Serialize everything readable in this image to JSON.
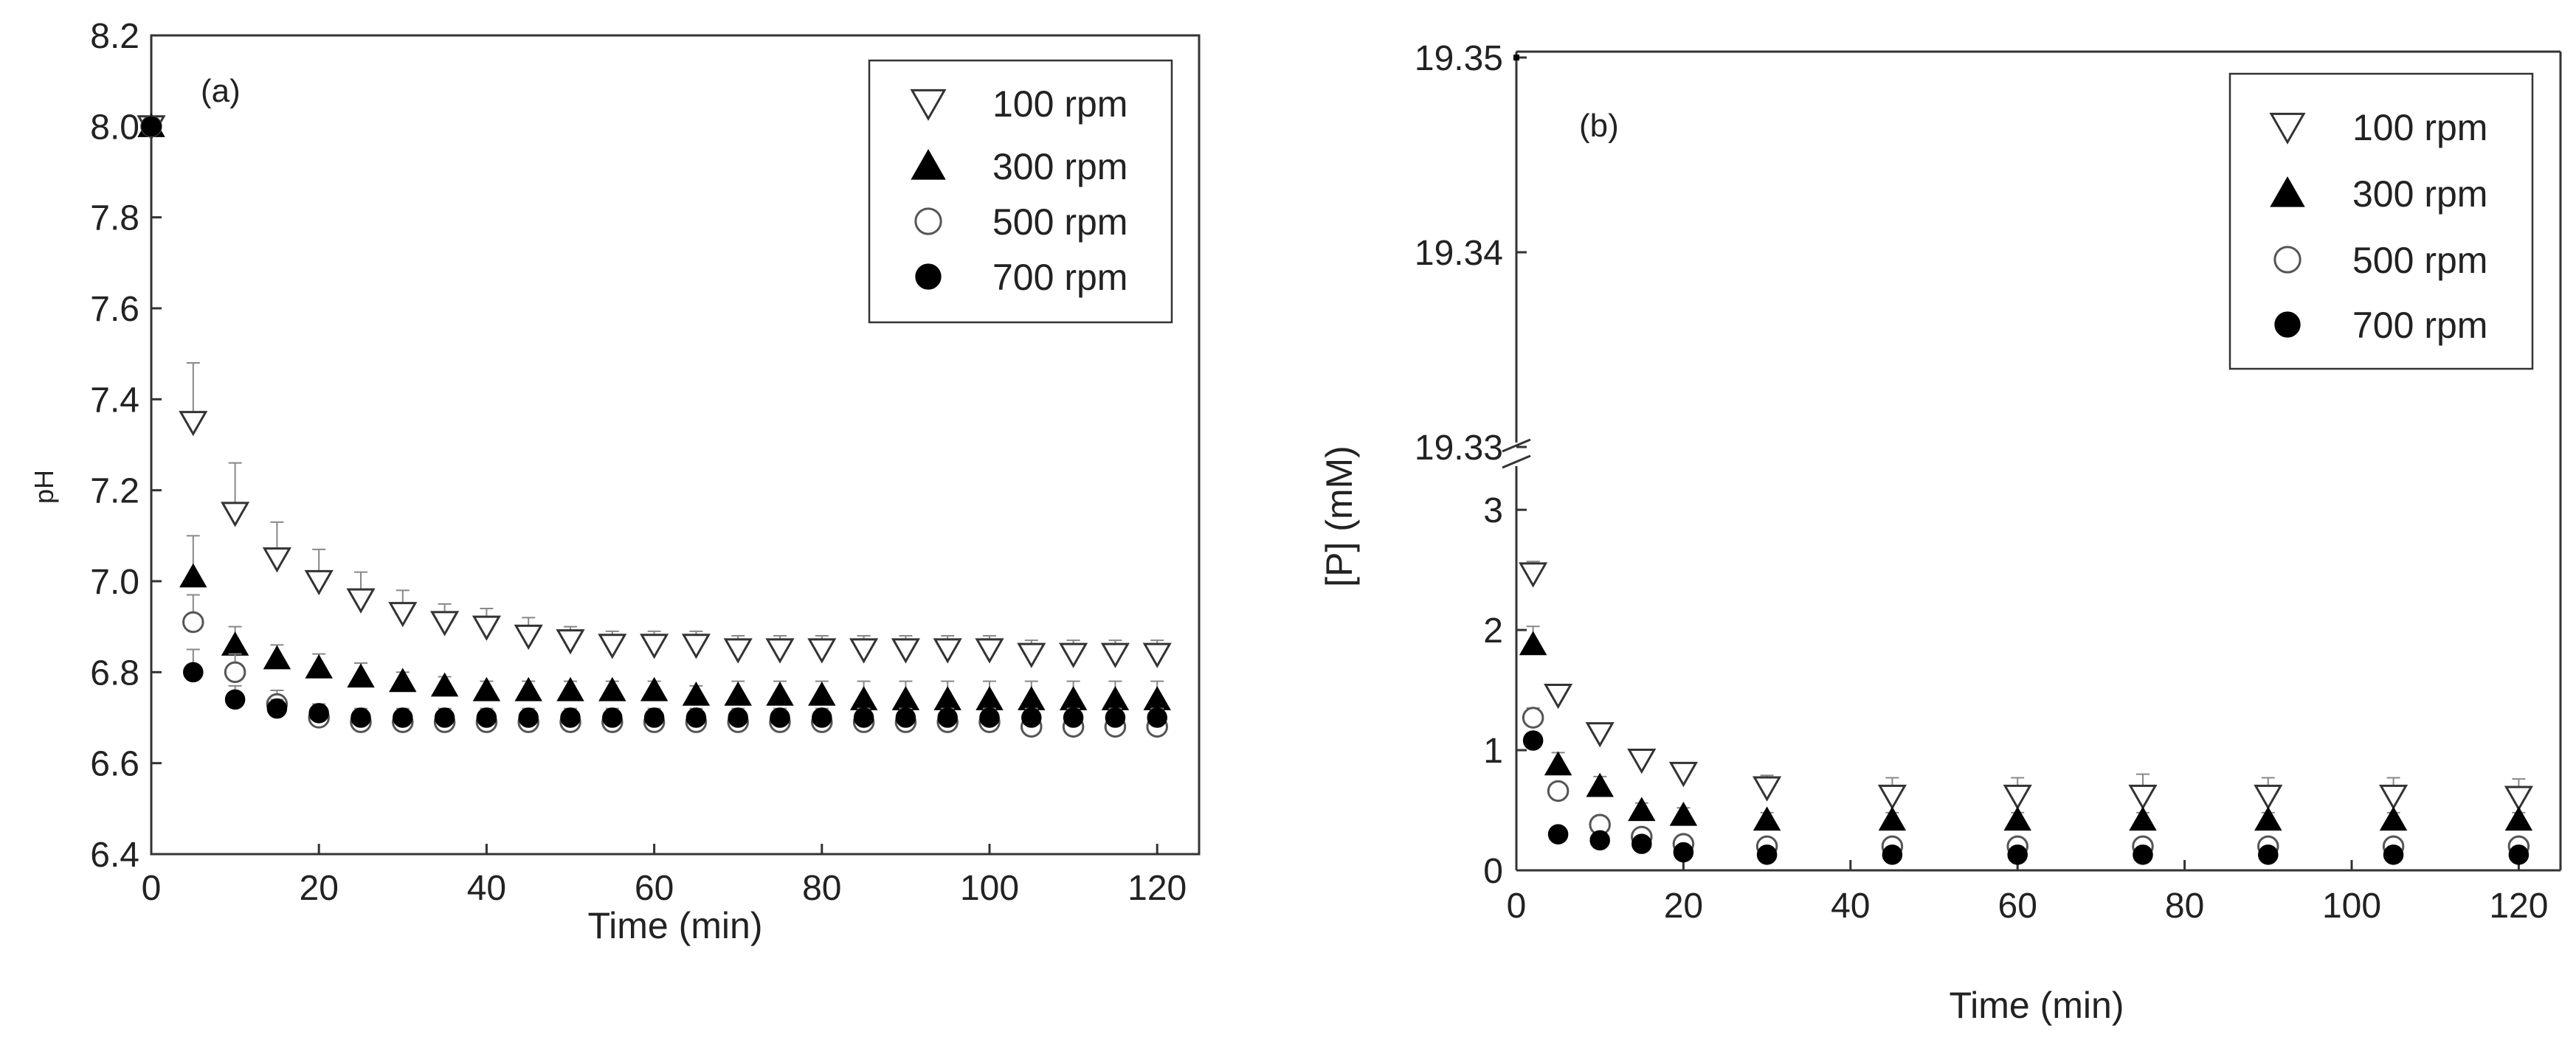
{
  "chart_data": [
    {
      "type": "scatter",
      "panel_label": "(a)",
      "xlabel": "Time (min)",
      "ylabel": "pH",
      "xlim": [
        0,
        125
      ],
      "ylim": [
        6.4,
        8.2
      ],
      "x_ticks": [
        0,
        20,
        40,
        60,
        80,
        100,
        120
      ],
      "y_ticks": [
        6.4,
        6.6,
        6.8,
        7.0,
        7.2,
        7.4,
        7.6,
        7.8,
        8.0,
        8.2
      ],
      "x_tick_labels": [
        "0",
        "20",
        "40",
        "60",
        "80",
        "100",
        "120"
      ],
      "y_tick_labels": [
        "6.4",
        "6.6",
        "6.8",
        "7.0",
        "7.2",
        "7.4",
        "7.6",
        "7.8",
        "8.0",
        "8.2"
      ],
      "legend_position": "top-right",
      "x": [
        0,
        5,
        10,
        15,
        20,
        25,
        30,
        35,
        40,
        45,
        50,
        55,
        60,
        65,
        70,
        75,
        80,
        85,
        90,
        95,
        100,
        105,
        110,
        115,
        120
      ],
      "series": [
        {
          "name": "100 rpm",
          "marker": "triangle-down-open",
          "values": [
            8.0,
            7.35,
            7.15,
            7.05,
            7.0,
            6.96,
            6.93,
            6.91,
            6.9,
            6.88,
            6.87,
            6.86,
            6.86,
            6.86,
            6.85,
            6.85,
            6.85,
            6.85,
            6.85,
            6.85,
            6.85,
            6.84,
            6.84,
            6.84,
            6.84
          ],
          "errors": [
            0,
            0.13,
            0.11,
            0.08,
            0.07,
            0.06,
            0.05,
            0.04,
            0.04,
            0.04,
            0.03,
            0.03,
            0.03,
            0.03,
            0.03,
            0.03,
            0.03,
            0.03,
            0.03,
            0.03,
            0.03,
            0.03,
            0.03,
            0.03,
            0.03
          ]
        },
        {
          "name": "300 rpm",
          "marker": "triangle-up-filled",
          "values": [
            8.0,
            7.01,
            6.86,
            6.83,
            6.81,
            6.79,
            6.78,
            6.77,
            6.76,
            6.76,
            6.76,
            6.76,
            6.76,
            6.75,
            6.75,
            6.75,
            6.75,
            6.74,
            6.74,
            6.74,
            6.74,
            6.74,
            6.74,
            6.74,
            6.74
          ],
          "errors": [
            0,
            0.09,
            0.04,
            0.03,
            0.03,
            0.03,
            0.02,
            0.02,
            0.02,
            0.02,
            0.02,
            0.02,
            0.02,
            0.02,
            0.03,
            0.03,
            0.03,
            0.04,
            0.04,
            0.04,
            0.04,
            0.04,
            0.04,
            0.04,
            0.04
          ]
        },
        {
          "name": "500 rpm",
          "marker": "circle-open",
          "values": [
            8.0,
            6.91,
            6.8,
            6.73,
            6.7,
            6.69,
            6.69,
            6.69,
            6.69,
            6.69,
            6.69,
            6.69,
            6.69,
            6.69,
            6.69,
            6.69,
            6.69,
            6.69,
            6.69,
            6.69,
            6.69,
            6.68,
            6.68,
            6.68,
            6.68
          ],
          "errors": [
            0,
            0.06,
            0.04,
            0.03,
            0.03,
            0.02,
            0.02,
            0.02,
            0.02,
            0.02,
            0.02,
            0.02,
            0.02,
            0.02,
            0.02,
            0.02,
            0.02,
            0.02,
            0.02,
            0.02,
            0.02,
            0.02,
            0.02,
            0.02,
            0.02
          ]
        },
        {
          "name": "700 rpm",
          "marker": "circle-filled",
          "values": [
            8.0,
            6.8,
            6.74,
            6.72,
            6.71,
            6.7,
            6.7,
            6.7,
            6.7,
            6.7,
            6.7,
            6.7,
            6.7,
            6.7,
            6.7,
            6.7,
            6.7,
            6.7,
            6.7,
            6.7,
            6.7,
            6.7,
            6.7,
            6.7,
            6.7
          ],
          "errors": [
            0,
            0.05,
            0.03,
            0.02,
            0.02,
            0.02,
            0.02,
            0.02,
            0.02,
            0.02,
            0.02,
            0.02,
            0.02,
            0.02,
            0.02,
            0.02,
            0.02,
            0.02,
            0.02,
            0.02,
            0.02,
            0.02,
            0.02,
            0.02,
            0.02
          ]
        }
      ]
    },
    {
      "type": "scatter",
      "panel_label": "(b)",
      "xlabel": "Time (min)",
      "ylabel": "[P] (mM)",
      "xlim": [
        0,
        125
      ],
      "ylim_lower": [
        0,
        3.4
      ],
      "ylim_upper": [
        19.33,
        19.35
      ],
      "axis_break": true,
      "x_ticks": [
        0,
        20,
        40,
        60,
        80,
        100,
        120
      ],
      "x_tick_labels": [
        "0",
        "20",
        "40",
        "60",
        "80",
        "100",
        "120"
      ],
      "y_ticks_lower": [
        0,
        1,
        2,
        3
      ],
      "y_tick_labels_lower": [
        "0",
        "1",
        "2",
        "3"
      ],
      "y_ticks_upper": [
        19.33,
        19.34,
        19.35
      ],
      "y_tick_labels_upper": [
        "19.33",
        "19.34",
        "19.35"
      ],
      "legend_position": "top-right",
      "x": [
        0,
        2,
        5,
        10,
        15,
        20,
        30,
        45,
        60,
        75,
        90,
        105,
        120
      ],
      "series": [
        {
          "name": "100 rpm",
          "marker": "triangle-down-open",
          "values": [
            19.35,
            2.47,
            1.46,
            1.14,
            0.92,
            0.81,
            0.69,
            0.62,
            0.62,
            0.62,
            0.62,
            0.62,
            0.61
          ],
          "errors": [
            0,
            0.1,
            0.08,
            0.06,
            0.06,
            0.06,
            0.1,
            0.15,
            0.15,
            0.18,
            0.15,
            0.15,
            0.15
          ]
        },
        {
          "name": "300 rpm",
          "marker": "triangle-up-filled",
          "values": [
            19.35,
            1.88,
            0.88,
            0.7,
            0.5,
            0.46,
            0.42,
            0.42,
            0.42,
            0.42,
            0.42,
            0.42,
            0.42
          ],
          "errors": [
            0,
            0.15,
            0.1,
            0.08,
            0.06,
            0.06,
            0.06,
            0.06,
            0.06,
            0.06,
            0.06,
            0.06,
            0.06
          ]
        },
        {
          "name": "500 rpm",
          "marker": "circle-open",
          "values": [
            19.35,
            1.27,
            0.66,
            0.38,
            0.28,
            0.22,
            0.2,
            0.2,
            0.2,
            0.2,
            0.2,
            0.2,
            0.2
          ],
          "errors": [
            0,
            0.08,
            0.06,
            0.05,
            0.04,
            0.04,
            0.04,
            0.04,
            0.04,
            0.04,
            0.04,
            0.04,
            0.04
          ]
        },
        {
          "name": "700 rpm",
          "marker": "circle-filled",
          "values": [
            19.35,
            1.08,
            0.3,
            0.25,
            0.22,
            0.15,
            0.13,
            0.13,
            0.13,
            0.13,
            0.13,
            0.13,
            0.13
          ],
          "errors": [
            0,
            0.06,
            0.04,
            0.03,
            0.03,
            0.03,
            0.03,
            0.03,
            0.03,
            0.03,
            0.03,
            0.03,
            0.03
          ]
        }
      ]
    }
  ]
}
